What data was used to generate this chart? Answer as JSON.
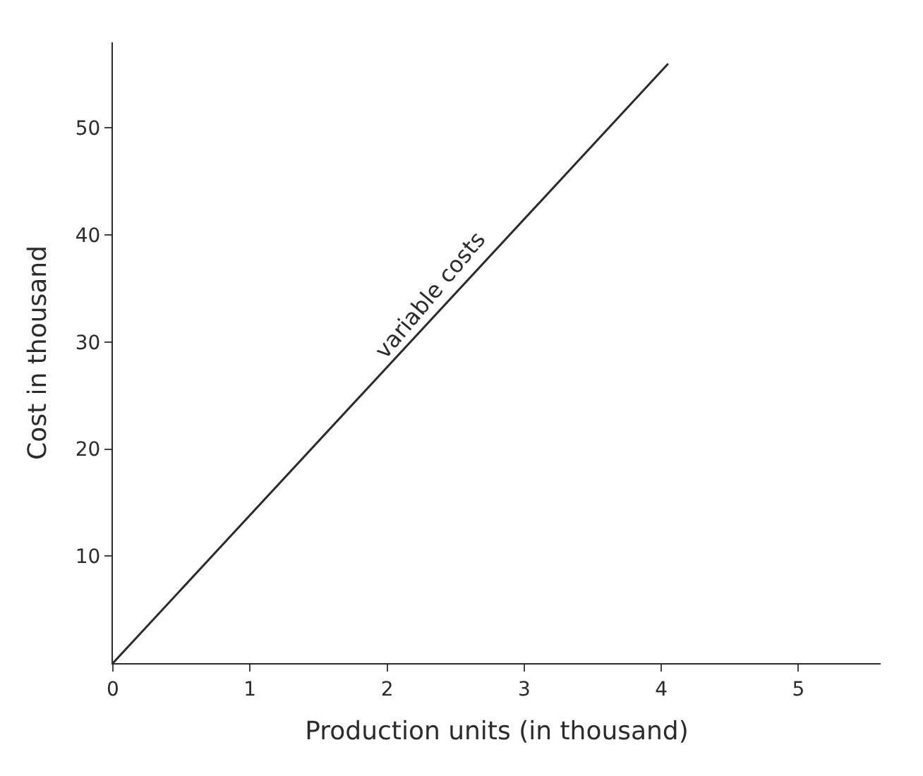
{
  "chart_data": {
    "type": "line",
    "xlabel": "Production units (in thousand)",
    "ylabel": "Cost in thousand",
    "x": [
      0,
      4.05
    ],
    "series": [
      {
        "color": "#2b2b2b",
        "values": [
          0,
          56
        ]
      }
    ],
    "annotations": [
      {
        "text": "variable costs",
        "x": 2.4,
        "y": 33.2
      }
    ],
    "xlim": [
      0,
      5.6
    ],
    "ylim": [
      0,
      58
    ],
    "xticks": [
      0,
      1,
      2,
      3,
      4,
      5
    ],
    "yticks": [
      10,
      20,
      30,
      40,
      50
    ],
    "marker": "none",
    "line_style": "solid"
  }
}
